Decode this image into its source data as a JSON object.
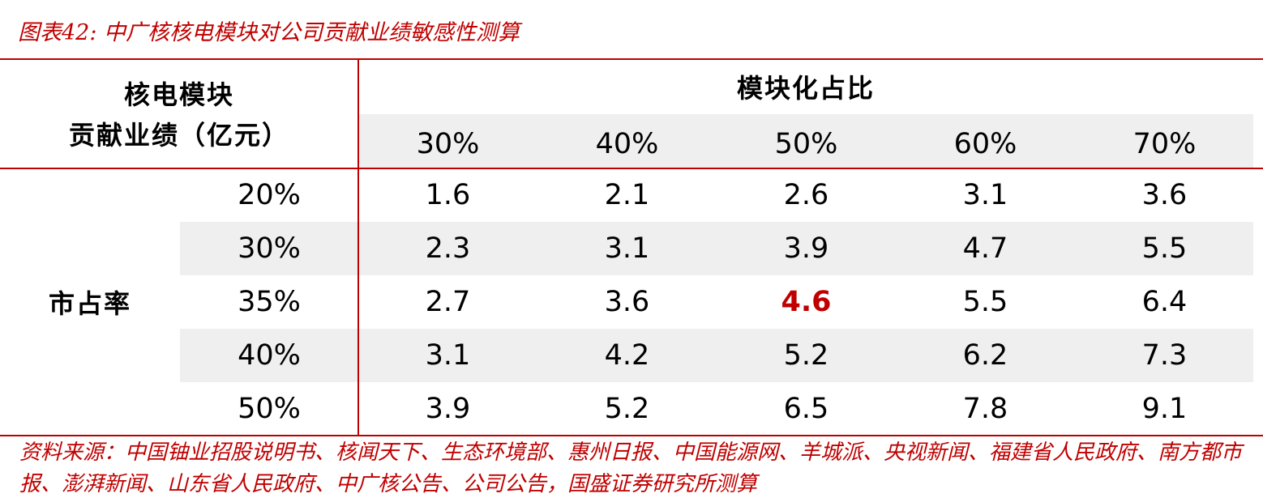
{
  "header": {
    "title": "图表42:  中广核核电模块对公司贡献业绩敏感性测算"
  },
  "table": {
    "corner": [
      "核电模块",
      "贡献业绩（亿元）"
    ],
    "group_header": "模块化占比",
    "columns": [
      "30%",
      "40%",
      "50%",
      "60%",
      "70%"
    ],
    "row_group": "市占率",
    "rows": [
      {
        "label": "20%",
        "values": [
          "1.6",
          "2.1",
          "2.6",
          "3.1",
          "3.6"
        ]
      },
      {
        "label": "30%",
        "values": [
          "2.3",
          "3.1",
          "3.9",
          "4.7",
          "5.5"
        ]
      },
      {
        "label": "35%",
        "values": [
          "2.7",
          "3.6",
          "4.6",
          "5.5",
          "6.4"
        ]
      },
      {
        "label": "40%",
        "values": [
          "3.1",
          "4.2",
          "5.2",
          "6.2",
          "7.3"
        ]
      },
      {
        "label": "50%",
        "values": [
          "3.9",
          "5.2",
          "6.5",
          "7.8",
          "9.1"
        ]
      }
    ]
  },
  "source": "资料来源：中国铀业招股说明书、核闻天下、生态环境部、惠州日报、中国能源网、羊城派、央视新闻、福建省人民政府、南方都市报、澎湃新闻、山东省人民政府、中广核公告、公司公告，国盛证券研究所测算"
}
